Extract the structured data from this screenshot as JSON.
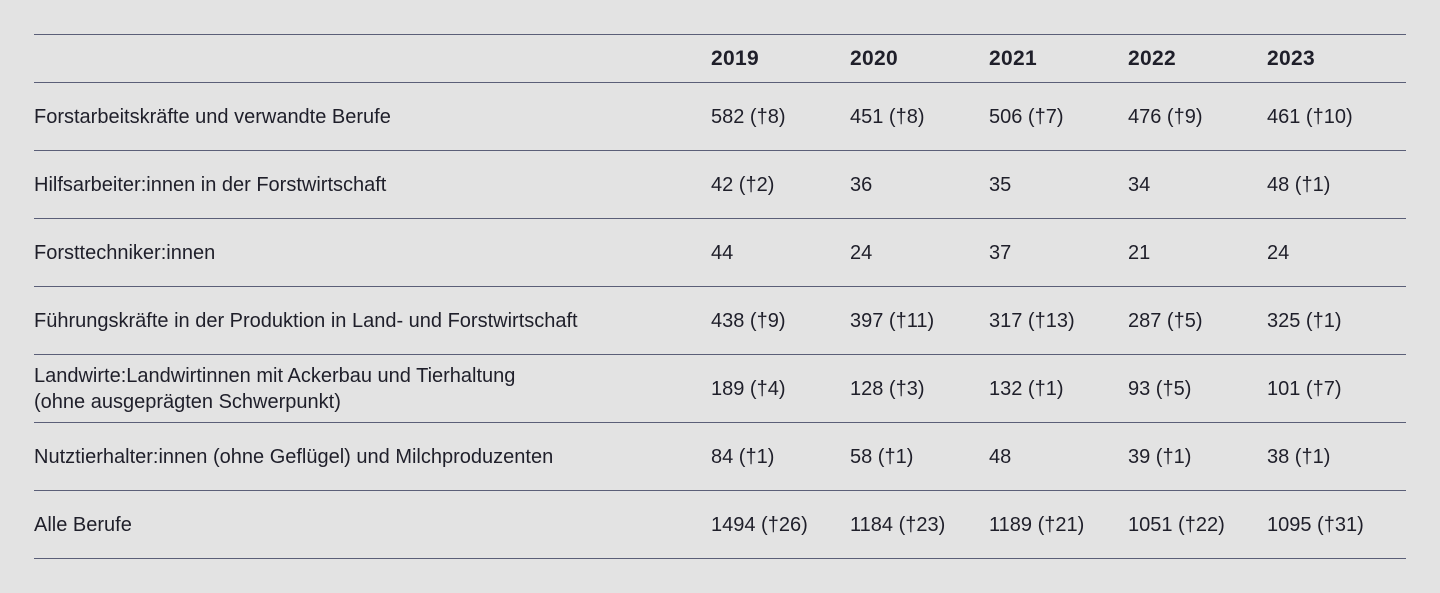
{
  "table": {
    "headers": [
      "",
      "2019",
      "2020",
      "2021",
      "2022",
      "2023"
    ],
    "rows": [
      {
        "label": [
          "Forstarbeitskräfte und verwandte Berufe"
        ],
        "values": [
          "582 (†8)",
          "451 (†8)",
          "506 (†7)",
          "476 (†9)",
          "461 (†10)"
        ]
      },
      {
        "label": [
          "Hilfsarbeiter:innen in der Forstwirtschaft"
        ],
        "values": [
          "42 (†2)",
          "36",
          "35",
          "34",
          "48 (†1)"
        ]
      },
      {
        "label": [
          "Forsttechniker:innen"
        ],
        "values": [
          "44",
          "24",
          "37",
          "21",
          "24"
        ]
      },
      {
        "label": [
          "Führungskräfte in der Produktion in Land- und Forstwirtschaft"
        ],
        "values": [
          "438 (†9)",
          "397 (†11)",
          "317 (†13)",
          "287 (†5)",
          "325 (†1)"
        ]
      },
      {
        "label": [
          "Landwirte:Landwirtinnen mit Ackerbau und Tierhaltung",
          "(ohne ausgeprägten Schwerpunkt)"
        ],
        "values": [
          "189 (†4)",
          "128 (†3)",
          "132 (†1)",
          "93 (†5)",
          "101 (†7)"
        ]
      },
      {
        "label": [
          "Nutztierhalter:innen (ohne Geflügel) und Milchproduzenten"
        ],
        "values": [
          "84 (†1)",
          "58 (†1)",
          "48",
          "39 (†1)",
          "38 (†1)"
        ]
      },
      {
        "label": [
          "Alle Berufe"
        ],
        "values": [
          "1494 (†26)",
          "1184 (†23)",
          "1189 (†21)",
          "1051 (†22)",
          "1095 (†31)"
        ]
      }
    ]
  }
}
